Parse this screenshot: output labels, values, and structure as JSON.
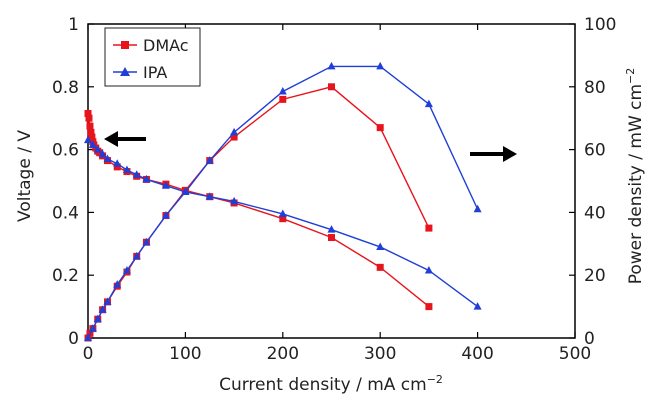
{
  "chart_data": {
    "type": "line",
    "xlabel": "Current density / mA cm",
    "xlabel_sup": "−2",
    "ylabel_left": "Voltage / V",
    "ylabel_right": "Power density / mW cm",
    "ylabel_right_sup": "−2",
    "xlim": [
      0,
      500
    ],
    "ylim_left": [
      0,
      1
    ],
    "ylim_right": [
      0,
      100
    ],
    "x_ticks": [
      0,
      100,
      200,
      300,
      400,
      500
    ],
    "y_left_ticks": [
      0,
      0.2,
      0.4,
      0.6,
      0.8,
      1
    ],
    "y_left_tick_labels": [
      "0",
      "0.2",
      "0.4",
      "0.6",
      "0.8",
      "1"
    ],
    "y_right_ticks": [
      0,
      20,
      40,
      60,
      80,
      100
    ],
    "grid": false,
    "legend_position": "top-left",
    "arrows": [
      {
        "direction": "left",
        "axis": "voltage"
      },
      {
        "direction": "right",
        "axis": "power density"
      }
    ],
    "series": [
      {
        "name": "DMAc",
        "color": "#e8141c",
        "marker": "square",
        "voltage": {
          "x": [
            0,
            1,
            2,
            3,
            4,
            5,
            6,
            8,
            10,
            12,
            15,
            20,
            30,
            40,
            50,
            60,
            80,
            100,
            125,
            150,
            200,
            250,
            300,
            350
          ],
          "y": [
            0.715,
            0.7,
            0.675,
            0.655,
            0.64,
            0.625,
            0.615,
            0.605,
            0.595,
            0.59,
            0.58,
            0.565,
            0.545,
            0.53,
            0.515,
            0.505,
            0.49,
            0.47,
            0.45,
            0.43,
            0.38,
            0.32,
            0.225,
            0.1
          ]
        },
        "power": {
          "x": [
            0,
            2,
            5,
            10,
            15,
            20,
            30,
            40,
            50,
            60,
            80,
            100,
            125,
            150,
            200,
            250,
            300,
            350
          ],
          "y": [
            0,
            1.5,
            3,
            6,
            9,
            11.5,
            16.5,
            21,
            26,
            30.5,
            39,
            47,
            56.5,
            64,
            76,
            80,
            67,
            35
          ]
        }
      },
      {
        "name": "IPA",
        "color": "#1f3fd6",
        "marker": "triangle",
        "voltage": {
          "x": [
            0,
            5,
            10,
            15,
            20,
            30,
            40,
            50,
            60,
            80,
            100,
            125,
            150,
            200,
            250,
            300,
            350,
            400
          ],
          "y": [
            0.63,
            0.615,
            0.6,
            0.585,
            0.57,
            0.555,
            0.535,
            0.52,
            0.505,
            0.485,
            0.465,
            0.45,
            0.435,
            0.395,
            0.345,
            0.29,
            0.215,
            0.1
          ]
        },
        "power": {
          "x": [
            0,
            5,
            10,
            15,
            20,
            30,
            40,
            50,
            60,
            80,
            100,
            125,
            150,
            200,
            250,
            300,
            350,
            400
          ],
          "y": [
            0,
            3,
            6,
            9,
            11.5,
            17,
            21.5,
            26,
            30.5,
            39,
            46.5,
            56.5,
            65.5,
            78.5,
            86.5,
            86.5,
            74.5,
            41
          ]
        }
      }
    ]
  }
}
